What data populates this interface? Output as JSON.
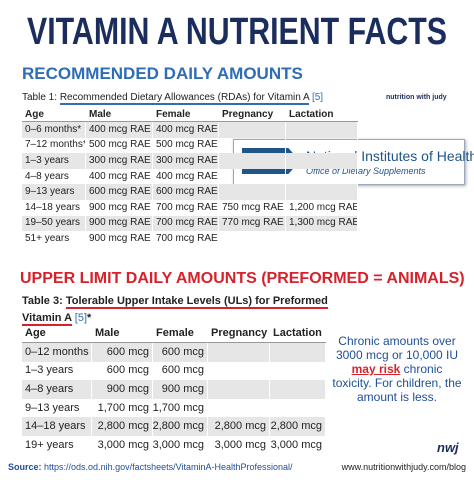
{
  "title": "VITAMIN A NUTRIENT FACTS",
  "section1": {
    "heading": "RECOMMENDED DAILY AMOUNTS",
    "caption": {
      "label": "Table 1:",
      "title": "Recommended Dietary Allowances (RDAs) for Vitamin A",
      "ref": "[5]"
    },
    "table": {
      "columns": [
        "Age",
        "Male",
        "Female",
        "Pregnancy",
        "Lactation"
      ],
      "rows": [
        [
          "0–6 months*",
          "400 mcg RAE",
          "400 mcg RAE",
          null,
          null
        ],
        [
          "7–12 months*",
          "500 mcg RAE",
          "500 mcg RAE",
          null,
          null
        ],
        [
          "1–3 years",
          "300 mcg RAE",
          "300 mcg RAE",
          null,
          null
        ],
        [
          "4–8 years",
          "400 mcg RAE",
          "400 mcg RAE",
          null,
          null
        ],
        [
          "9–13 years",
          "600 mcg RAE",
          "600 mcg RAE",
          null,
          null
        ],
        [
          "14–18 years",
          "900 mcg RAE",
          "700 mcg RAE",
          "750 mcg RAE",
          "1,200 mcg RAE"
        ],
        [
          "19–50 years",
          "900 mcg RAE",
          "700 mcg RAE",
          "770 mcg RAE",
          "1,300 mcg RAE"
        ],
        [
          "51+ years",
          "900 mcg RAE",
          "700 mcg RAE",
          null,
          null
        ]
      ]
    }
  },
  "logo": "nutrition with judy",
  "nih": {
    "abbr": "NIH",
    "name": "National Institutes of Health",
    "office": "Office of Dietary Supplements"
  },
  "section2": {
    "heading": "UPPER LIMIT DAILY AMOUNTS (PREFORMED = ANIMALS)",
    "caption": {
      "label": "Table 3:",
      "title": "Tolerable Upper Intake Levels (ULs) for Preformed Vitamin A",
      "ref": "[5]",
      "note": "*"
    },
    "table": {
      "columns": [
        "Age",
        "Male",
        "Female",
        "Pregnancy",
        "Lactation"
      ],
      "rows": [
        [
          "0–12 months",
          "600 mcg",
          "600 mcg",
          null,
          null
        ],
        [
          "1–3 years",
          "600 mcg",
          "600 mcg",
          null,
          null
        ],
        [
          "4–8 years",
          "900 mcg",
          "900 mcg",
          null,
          null
        ],
        [
          "9–13 years",
          "1,700 mcg",
          "1,700 mcg",
          null,
          null
        ],
        [
          "14–18 years",
          "2,800 mcg",
          "2,800 mcg",
          "2,800 mcg",
          "2,800 mcg"
        ],
        [
          "19+ years",
          "3,000 mcg",
          "3,000 mcg",
          "3,000 mcg",
          "3,000 mcg"
        ]
      ]
    }
  },
  "callout": {
    "before": "Chronic amounts over 3000 mcg or 10,000 IU",
    "emphasis": "may risk",
    "after": "chronic toxicity. For children, the amount is less."
  },
  "footer": {
    "source_label": "Source:",
    "source_url": "https://ods.od.nih.gov/factsheets/VitaminA-HealthProfessional/",
    "mark": "nwj",
    "site": "www.nutritionwithjudy.com/blog"
  }
}
